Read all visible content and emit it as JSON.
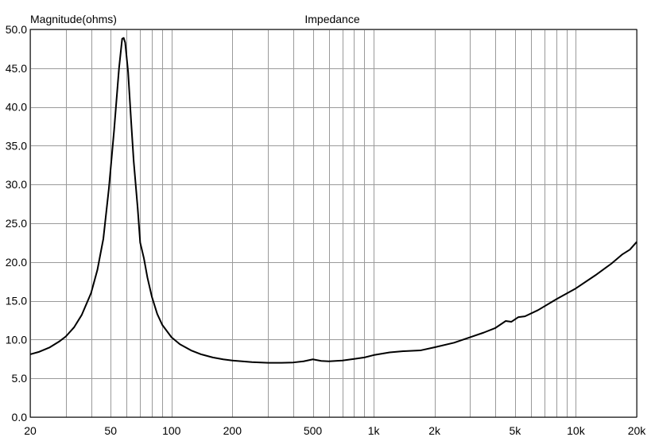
{
  "chart_data": {
    "type": "line",
    "title": "Impedance",
    "ylabel": "Magnitude(ohms)",
    "xlabel": "",
    "x_scale": "log",
    "xlim": [
      20,
      20000
    ],
    "ylim": [
      0,
      50
    ],
    "grid": true,
    "x_tick_labels": [
      {
        "value": 20,
        "label": "20"
      },
      {
        "value": 50,
        "label": "50"
      },
      {
        "value": 100,
        "label": "100"
      },
      {
        "value": 200,
        "label": "200"
      },
      {
        "value": 500,
        "label": "500"
      },
      {
        "value": 1000,
        "label": "1k"
      },
      {
        "value": 2000,
        "label": "2k"
      },
      {
        "value": 5000,
        "label": "5k"
      },
      {
        "value": 10000,
        "label": "10k"
      },
      {
        "value": 20000,
        "label": "20k"
      }
    ],
    "y_tick_labels": [
      {
        "value": 0,
        "label": "0.0"
      },
      {
        "value": 5,
        "label": "5.0"
      },
      {
        "value": 10,
        "label": "10.0"
      },
      {
        "value": 15,
        "label": "15.0"
      },
      {
        "value": 20,
        "label": "20.0"
      },
      {
        "value": 25,
        "label": "25.0"
      },
      {
        "value": 30,
        "label": "30.0"
      },
      {
        "value": 35,
        "label": "35.0"
      },
      {
        "value": 40,
        "label": "40.0"
      },
      {
        "value": 45,
        "label": "45.0"
      },
      {
        "value": 50,
        "label": "50.0"
      }
    ],
    "series": [
      {
        "color": "#000000",
        "points": [
          [
            20,
            8.1
          ],
          [
            22,
            8.4
          ],
          [
            25,
            9.0
          ],
          [
            28,
            9.8
          ],
          [
            30,
            10.4
          ],
          [
            33,
            11.6
          ],
          [
            36,
            13.2
          ],
          [
            40,
            16.0
          ],
          [
            43,
            19.0
          ],
          [
            46,
            23.0
          ],
          [
            49,
            29.5
          ],
          [
            52,
            37.0
          ],
          [
            55,
            45.0
          ],
          [
            57,
            48.8
          ],
          [
            58,
            48.9
          ],
          [
            59,
            48.3
          ],
          [
            61,
            44.5
          ],
          [
            63,
            38.5
          ],
          [
            65,
            33.0
          ],
          [
            68,
            27.0
          ],
          [
            70,
            22.5
          ],
          [
            73,
            20.5
          ],
          [
            76,
            18.0
          ],
          [
            80,
            15.5
          ],
          [
            85,
            13.3
          ],
          [
            90,
            11.9
          ],
          [
            100,
            10.3
          ],
          [
            110,
            9.4
          ],
          [
            125,
            8.6
          ],
          [
            140,
            8.1
          ],
          [
            160,
            7.7
          ],
          [
            180,
            7.45
          ],
          [
            200,
            7.3
          ],
          [
            250,
            7.1
          ],
          [
            300,
            7.0
          ],
          [
            350,
            7.0
          ],
          [
            400,
            7.05
          ],
          [
            450,
            7.2
          ],
          [
            500,
            7.45
          ],
          [
            550,
            7.25
          ],
          [
            600,
            7.2
          ],
          [
            700,
            7.3
          ],
          [
            800,
            7.5
          ],
          [
            900,
            7.7
          ],
          [
            1000,
            8.0
          ],
          [
            1200,
            8.35
          ],
          [
            1400,
            8.5
          ],
          [
            1700,
            8.6
          ],
          [
            2000,
            9.0
          ],
          [
            2500,
            9.6
          ],
          [
            3000,
            10.3
          ],
          [
            3500,
            10.9
          ],
          [
            4000,
            11.5
          ],
          [
            4500,
            12.4
          ],
          [
            4800,
            12.3
          ],
          [
            5200,
            12.9
          ],
          [
            5600,
            13.0
          ],
          [
            6500,
            13.8
          ],
          [
            8000,
            15.2
          ],
          [
            10000,
            16.6
          ],
          [
            12500,
            18.3
          ],
          [
            15000,
            19.8
          ],
          [
            17000,
            21.0
          ],
          [
            18500,
            21.6
          ],
          [
            20000,
            22.6
          ]
        ]
      }
    ]
  }
}
